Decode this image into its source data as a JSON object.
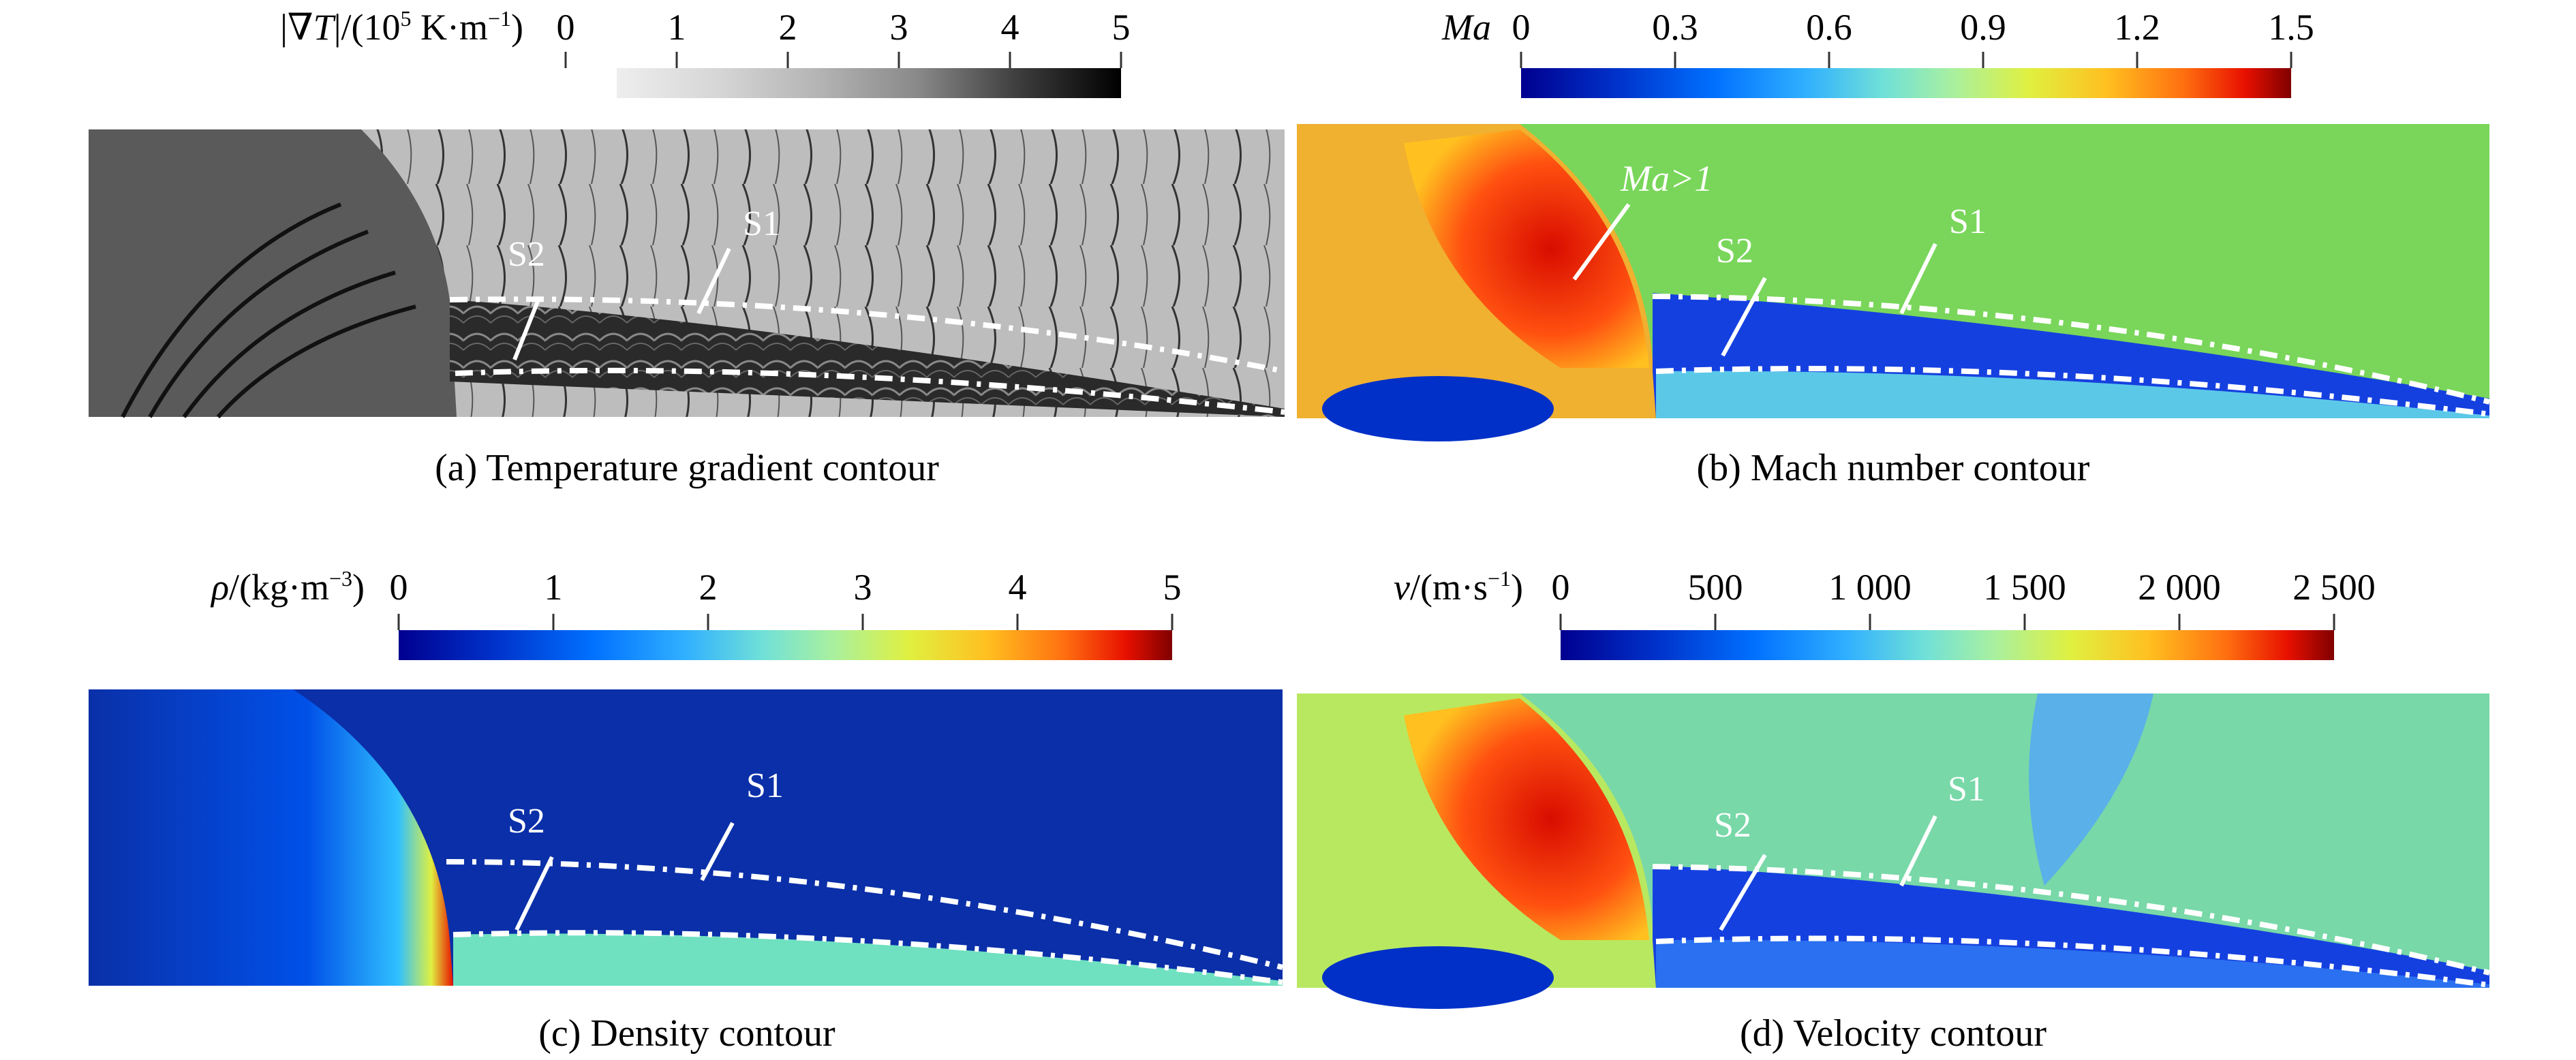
{
  "panels": [
    {
      "id": "a",
      "caption": "(a) Temperature gradient contour",
      "colorbar": {
        "title_prefix": "|∇",
        "title_var": "T",
        "title_mid": "|/(10",
        "title_sup": "5",
        "title_unit": " K·m",
        "title_sup2": "−1",
        "title_end": ")",
        "ticks": [
          "0",
          "1",
          "2",
          "3",
          "4",
          "5"
        ],
        "range": [
          0,
          5
        ],
        "colormap": "grayscale"
      },
      "annotations": [
        "S2",
        "S1"
      ]
    },
    {
      "id": "b",
      "caption": "(b) Mach number contour",
      "colorbar": {
        "title_var": "Ma",
        "ticks": [
          "0",
          "0.3",
          "0.6",
          "0.9",
          "1.2",
          "1.5"
        ],
        "range": [
          0,
          1.5
        ],
        "colormap": "jet"
      },
      "annotations": [
        "Ma>1",
        "S2",
        "S1"
      ]
    },
    {
      "id": "c",
      "caption": "(c) Density contour",
      "colorbar": {
        "title_var": "ρ",
        "title_mid": "/(kg·m",
        "title_sup": "−3",
        "title_end": ")",
        "ticks": [
          "0",
          "1",
          "2",
          "3",
          "4",
          "5"
        ],
        "range": [
          0,
          5
        ],
        "colormap": "jet"
      },
      "annotations": [
        "S2",
        "S1"
      ]
    },
    {
      "id": "d",
      "caption": "(d) Velocity contour",
      "colorbar": {
        "title_var": "v",
        "title_mid": "/(m·s",
        "title_sup": "−1",
        "title_end": ")",
        "ticks": [
          "0",
          "500",
          "1 000",
          "1 500",
          "2 000",
          "2 500"
        ],
        "range": [
          0,
          2500
        ],
        "colormap": "jet"
      },
      "annotations": [
        "S2",
        "S1"
      ]
    }
  ],
  "colors": {
    "jet": [
      "#00008f",
      "#0030c8",
      "#0070ff",
      "#30b0ff",
      "#70e0d8",
      "#a8f0a0",
      "#e0f040",
      "#ffc020",
      "#ff7010",
      "#e81000",
      "#800000"
    ],
    "gray": [
      "#f0f0f0",
      "#d8d8d8",
      "#bcbcbc",
      "#9a9a9a",
      "#6c6c6c",
      "#383838",
      "#000000"
    ],
    "mach_background": "#79d65a",
    "mach_shock_region": "#e03020",
    "density_background": "#0a2fa8",
    "density_lower": "#6fe0c0",
    "velocity_background": "#78d8a8",
    "flow_lines": "#ffffff"
  }
}
